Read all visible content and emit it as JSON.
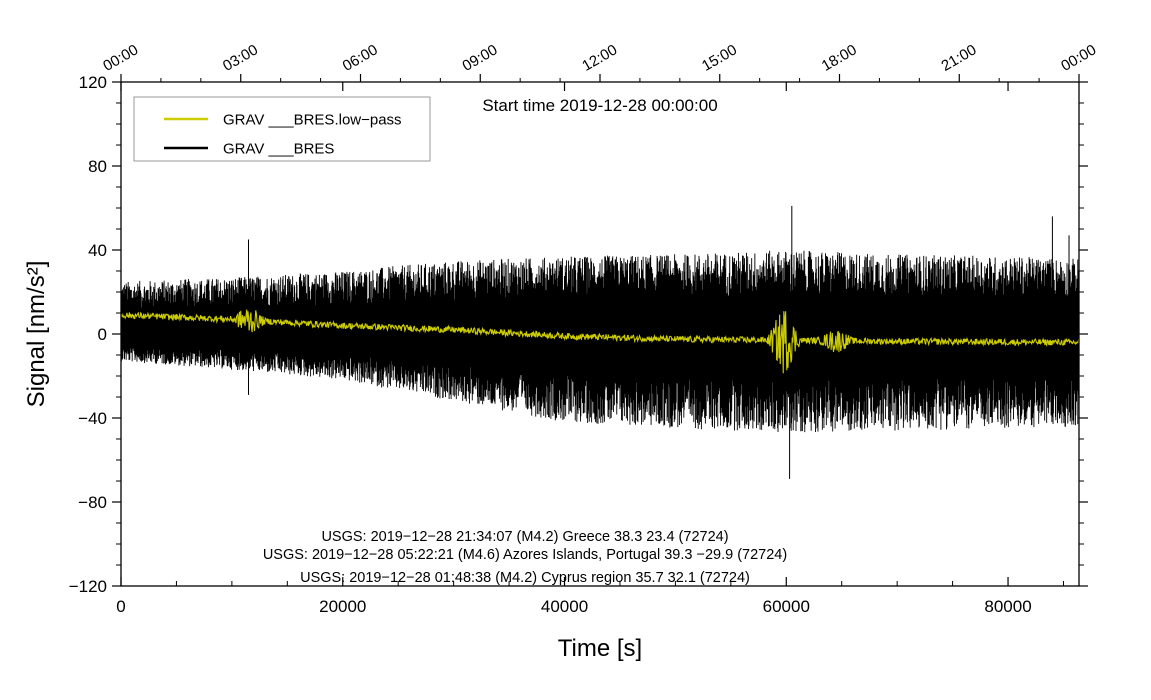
{
  "chart_data": {
    "type": "line",
    "title": "Start time 2019-12-28 00:00:00",
    "xlabel": "Time [s]",
    "ylabel": "Signal [nm/s²]",
    "xlim": [
      0,
      86400
    ],
    "ylim": [
      -120,
      120
    ],
    "x_ticks": [
      0,
      20000,
      40000,
      60000,
      80000
    ],
    "x_tick_labels": [
      "0",
      "20000",
      "40000",
      "60000",
      "80000"
    ],
    "y_ticks": [
      -120,
      -80,
      -40,
      0,
      40,
      80,
      120
    ],
    "y_tick_labels": [
      "−120",
      "−80",
      "−40",
      "0",
      "40",
      "80",
      "120"
    ],
    "top_axis_ticks": [
      0,
      10800,
      21600,
      32400,
      43200,
      54000,
      64800,
      75600,
      86400
    ],
    "top_axis_labels": [
      "00:00",
      "03:00",
      "06:00",
      "09:00",
      "12:00",
      "15:00",
      "18:00",
      "21:00",
      "00:00"
    ],
    "legend_position": "top-left",
    "series": [
      {
        "name": "GRAV ___BRES.low−pass",
        "color": "#cccc00",
        "trend_x": [
          0,
          10000,
          20000,
          30000,
          40000,
          50000,
          60000,
          70000,
          86400
        ],
        "trend_y": [
          9,
          7,
          4,
          2,
          -1,
          -2.5,
          -3,
          -3.5,
          -4
        ],
        "noise_amplitude": 1.5,
        "events": [
          {
            "x": 11500,
            "amplitude": 6
          },
          {
            "x": 59800,
            "amplitude": 16
          },
          {
            "x": 64500,
            "amplitude": 5
          }
        ]
      },
      {
        "name": "GRAV ___BRES",
        "color": "#000000",
        "envelope_x": [
          0,
          10000,
          20000,
          30000,
          40000,
          50000,
          60000,
          70000,
          80000,
          86400
        ],
        "envelope_upper": [
          25,
          27,
          30,
          35,
          37,
          38,
          40,
          38,
          37,
          36
        ],
        "envelope_lower": [
          -13,
          -17,
          -22,
          -32,
          -42,
          -45,
          -47,
          -46,
          -45,
          -44
        ],
        "peaks": [
          {
            "x": 11500,
            "y": 45
          },
          {
            "x": 11500,
            "y": -29
          },
          {
            "x": 60500,
            "y": 61
          },
          {
            "x": 60300,
            "y": -69
          },
          {
            "x": 84000,
            "y": 56
          },
          {
            "x": 85500,
            "y": 47
          }
        ]
      }
    ],
    "annotations": [
      "USGS: 2019−12−28 21:34:07 (M4.2) Greece 38.3 23.4 (72724)",
      "USGS: 2019−12−28 05:22:21 (M4.6) Azores Islands, Portugal 39.3 −29.9 (72724)",
      "USGS: 2019−12−28 01:48:38 (M4.2) Cyprus region 35.7 32.1 (72724)"
    ]
  }
}
